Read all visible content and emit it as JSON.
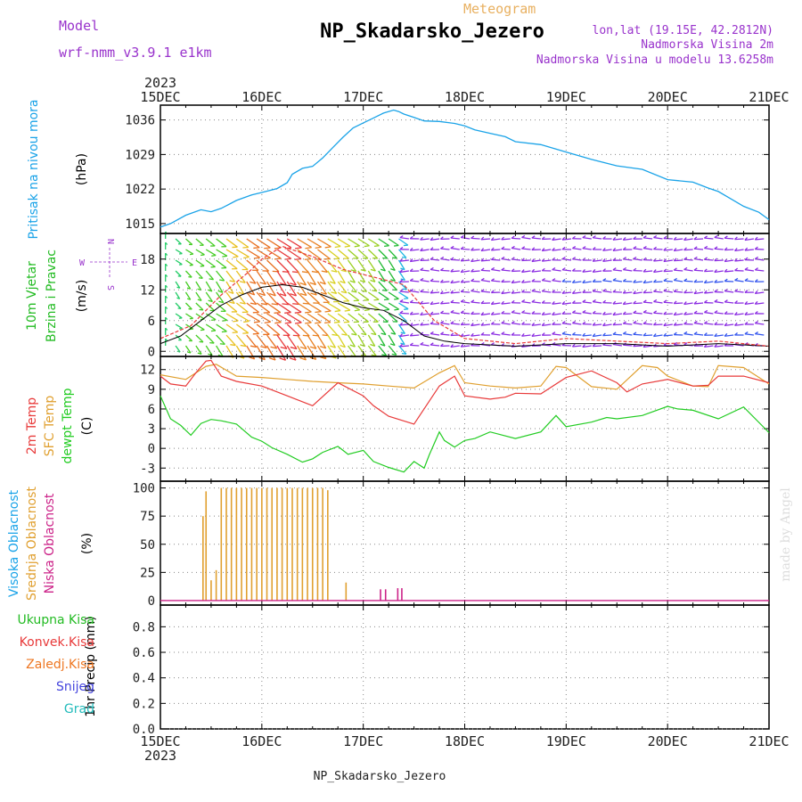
{
  "header": {
    "model_label": "Model",
    "model_name": "wrf-nmm_v3.9.1 e1km",
    "meteogram_label": "Meteogram",
    "station_title": "NP_Skadarsko_Jezero",
    "lonlat": "lon,lat (19.15E, 42.2812N)",
    "elevation": "Nadmorska Visina 2m",
    "model_elevation": "Nadmorska Visina u modelu 13.6258m",
    "footer_station": "NP_Skadarsko_Jezero",
    "credit": "made by Angel",
    "year_top": "2023",
    "year_bottom": "2023"
  },
  "colors": {
    "pressure": "#1aa3e8",
    "wind_label": "#22bb22",
    "temp_2m": "#e83a3a",
    "temp_sfc": "#e0a030",
    "dewpoint": "#22cc22",
    "cloud_high": "#1aa3e8",
    "cloud_mid": "#e0a030",
    "cloud_low": "#cc2288",
    "wind_vector": "#8a2be2",
    "precip_total": "#22bb22",
    "precip_conv": "#e83a3a",
    "precip_frozen": "#ee7722",
    "snow": "#4444dd",
    "hail": "#22bbbb",
    "header_purple": "#9933cc",
    "meteogram_orange": "#e8b060"
  },
  "x_axis": {
    "days": [
      "15DEC",
      "16DEC",
      "17DEC",
      "18DEC",
      "19DEC",
      "20DEC",
      "21DEC"
    ]
  },
  "chart_data": [
    {
      "type": "line",
      "panel": "pressure",
      "ylabel": "Pritisak na nivou mora",
      "unit": "(hPa)",
      "yticks": [
        1015,
        1022,
        1029,
        1036
      ],
      "ylim": [
        1013,
        1039
      ],
      "series": [
        {
          "x": [
            0,
            0.1,
            0.25,
            0.4,
            0.5,
            0.6,
            0.75,
            0.9,
            1.0,
            1.15,
            1.25,
            1.3,
            1.4,
            1.5,
            1.6,
            1.7,
            1.8,
            1.9,
            2.0,
            2.1,
            2.2,
            2.3,
            2.35,
            2.4,
            2.5,
            2.6,
            2.75,
            2.9,
            3.0,
            3.1,
            3.25,
            3.4,
            3.5,
            3.75,
            4.0,
            4.25,
            4.5,
            4.75,
            5.0,
            5.1,
            5.25,
            5.4,
            5.5,
            5.6,
            5.75,
            5.9,
            6.0
          ],
          "values": [
            1014.3,
            1015.0,
            1016.7,
            1017.8,
            1017.4,
            1018.1,
            1019.7,
            1020.8,
            1021.3,
            1022.1,
            1023.3,
            1025.0,
            1026.2,
            1026.6,
            1028.3,
            1030.4,
            1032.5,
            1034.4,
            1035.4,
            1036.4,
            1037.4,
            1038.0,
            1037.7,
            1037.2,
            1036.5,
            1035.8,
            1035.7,
            1035.3,
            1034.8,
            1034.0,
            1033.3,
            1032.6,
            1031.6,
            1031.0,
            1029.5,
            1028.0,
            1026.7,
            1026.0,
            1023.9,
            1023.7,
            1023.4,
            1022.2,
            1021.5,
            1020.3,
            1018.5,
            1017.3,
            1015.8
          ]
        }
      ]
    },
    {
      "type": "line",
      "panel": "wind",
      "ylabel": "10m Vjetar Brzina i Pravac",
      "unit": "(m/s)",
      "yticks": [
        0,
        6,
        12,
        18
      ],
      "ylim": [
        -1,
        23
      ],
      "compass": {
        "n": "N",
        "s": "S",
        "w": "W",
        "e": "E"
      },
      "series": [
        {
          "name": "speed",
          "x": [
            0,
            0.2,
            0.4,
            0.6,
            0.8,
            1.0,
            1.2,
            1.4,
            1.6,
            1.8,
            2.0,
            2.2,
            2.4,
            2.6,
            2.8,
            3.0,
            3.5,
            4.0,
            4.5,
            5.0,
            5.5,
            6.0
          ],
          "values": [
            1.5,
            3.0,
            6.0,
            9.0,
            11.0,
            12.5,
            13.0,
            12.5,
            11.0,
            9.5,
            8.5,
            8.0,
            6.0,
            3.0,
            2.0,
            1.5,
            1.0,
            1.5,
            1.5,
            1.0,
            1.5,
            1.0
          ]
        },
        {
          "name": "gust",
          "x": [
            0,
            0.3,
            0.6,
            0.9,
            1.0,
            1.2,
            1.5,
            1.8,
            2.1,
            2.4,
            2.7,
            3.0,
            3.5,
            4.0,
            4.5,
            5.0,
            5.5,
            6.0
          ],
          "values": [
            2.5,
            5.0,
            11.0,
            16.0,
            18.0,
            20.5,
            18.5,
            16.0,
            14.5,
            13.0,
            6.0,
            2.5,
            1.5,
            2.5,
            2.0,
            1.5,
            2.0,
            1.0
          ]
        }
      ]
    },
    {
      "type": "line",
      "panel": "temperature",
      "unit": "(C)",
      "yticks": [
        -3,
        0,
        3,
        6,
        9,
        12
      ],
      "ylim": [
        -5,
        14
      ],
      "series": [
        {
          "name": "2m Temp",
          "x": [
            0,
            0.1,
            0.25,
            0.35,
            0.45,
            0.5,
            0.6,
            0.75,
            1.0,
            1.25,
            1.5,
            1.75,
            2.0,
            2.1,
            2.25,
            2.5,
            2.75,
            2.9,
            3.0,
            3.25,
            3.4,
            3.5,
            3.75,
            4.0,
            4.25,
            4.5,
            4.6,
            4.75,
            5.0,
            5.25,
            5.4,
            5.5,
            5.75,
            6.0
          ],
          "values": [
            11.0,
            9.8,
            9.5,
            11.5,
            13.3,
            13.4,
            11.0,
            10.2,
            9.5,
            8.0,
            6.5,
            10.0,
            8.0,
            6.5,
            4.9,
            3.7,
            9.5,
            11.0,
            8.0,
            7.5,
            7.8,
            8.4,
            8.3,
            10.8,
            11.8,
            10.0,
            8.6,
            9.8,
            10.5,
            9.5,
            9.6,
            11.0,
            11.0,
            10.0
          ]
        },
        {
          "name": "SFC Temp",
          "x": [
            0,
            0.25,
            0.45,
            0.55,
            0.75,
            1.0,
            1.25,
            1.5,
            1.75,
            2.0,
            2.25,
            2.5,
            2.75,
            2.9,
            3.0,
            3.25,
            3.5,
            3.75,
            3.9,
            4.0,
            4.25,
            4.5,
            4.75,
            4.9,
            5.0,
            5.25,
            5.4,
            5.5,
            5.75,
            6.0
          ],
          "values": [
            11.2,
            10.5,
            12.5,
            12.8,
            11.0,
            10.8,
            10.5,
            10.2,
            10.0,
            9.8,
            9.5,
            9.2,
            11.5,
            12.6,
            10.0,
            9.5,
            9.2,
            9.5,
            12.5,
            12.3,
            9.4,
            9.0,
            12.6,
            12.3,
            11.0,
            9.5,
            9.4,
            12.6,
            12.3,
            9.8
          ]
        },
        {
          "name": "dewpt Temp",
          "x": [
            0,
            0.1,
            0.2,
            0.3,
            0.4,
            0.5,
            0.6,
            0.75,
            0.9,
            1.0,
            1.1,
            1.25,
            1.4,
            1.5,
            1.6,
            1.75,
            1.85,
            2.0,
            2.1,
            2.25,
            2.4,
            2.5,
            2.6,
            2.65,
            2.75,
            2.8,
            2.9,
            3.0,
            3.1,
            3.25,
            3.5,
            3.75,
            3.9,
            4.0,
            4.25,
            4.4,
            4.5,
            4.75,
            5.0,
            5.1,
            5.25,
            5.5,
            5.75,
            6.0
          ],
          "values": [
            8.0,
            4.5,
            3.5,
            2.0,
            3.8,
            4.4,
            4.2,
            3.7,
            1.7,
            1.1,
            0.1,
            -0.9,
            -2.1,
            -1.6,
            -0.6,
            0.3,
            -0.9,
            -0.3,
            -2.0,
            -2.9,
            -3.6,
            -2.0,
            -3.0,
            -1.0,
            2.5,
            1.2,
            0.2,
            1.2,
            1.5,
            2.5,
            1.5,
            2.5,
            5.0,
            3.3,
            4.0,
            4.7,
            4.5,
            5.0,
            6.4,
            6.0,
            5.8,
            4.5,
            6.3,
            2.4
          ]
        }
      ]
    },
    {
      "type": "bar",
      "panel": "cloud",
      "unit": "(%)",
      "yticks": [
        0,
        25,
        50,
        75,
        100
      ],
      "ylim": [
        -4,
        106
      ],
      "series": [
        {
          "name": "Srednja Oblacnost",
          "x": [
            0.42,
            0.45,
            0.5,
            0.55,
            0.6,
            0.65,
            0.7,
            0.75,
            0.8,
            0.85,
            0.9,
            0.95,
            1.0,
            1.05,
            1.1,
            1.15,
            1.2,
            1.25,
            1.3,
            1.35,
            1.4,
            1.45,
            1.5,
            1.55,
            1.6,
            1.65,
            1.83
          ],
          "values": [
            75,
            97,
            18,
            27,
            100,
            100,
            100,
            100,
            100,
            100,
            100,
            100,
            100,
            100,
            100,
            100,
            100,
            100,
            100,
            100,
            100,
            100,
            100,
            100,
            100,
            98,
            16
          ]
        },
        {
          "name": "Niska Oblacnost",
          "x": [
            2.17,
            2.22,
            2.34,
            2.38
          ],
          "values": [
            10,
            10,
            11,
            11
          ]
        },
        {
          "name": "Visoka Oblacnost",
          "x": [],
          "values": []
        }
      ]
    },
    {
      "type": "bar",
      "panel": "precip",
      "unit": "1hr Precip (mm)",
      "yticks": [
        0,
        0.2,
        0.4,
        0.6,
        0.8
      ],
      "ylim": [
        0,
        0.97
      ],
      "legend": [
        "Ukupna Kisa",
        "Konvek.Kisa",
        "Zaledj.Kisa",
        "Snijeg",
        "Grad"
      ],
      "series": []
    }
  ]
}
